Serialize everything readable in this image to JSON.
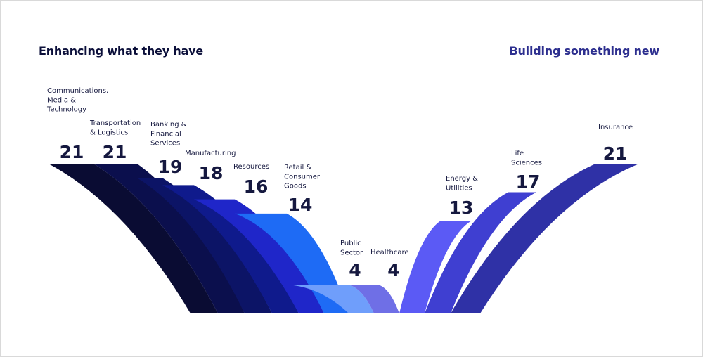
{
  "header": {
    "left_title": "Enhancing what they have",
    "right_title": "Building something new"
  },
  "chart_data": {
    "type": "bar",
    "categories": [
      "Communications, Media & Technology",
      "Transportation & Logistics",
      "Banking & Financial Services",
      "Manufacturing",
      "Resources",
      "Retail & Consumer Goods",
      "Public Sector",
      "Healthcare",
      "Energy & Utilities",
      "Life Sciences",
      "Insurance"
    ],
    "label_lines": [
      [
        "Communications,",
        "Media &",
        "Technology"
      ],
      [
        "Transportation",
        "& Logistics"
      ],
      [
        "Banking &",
        "Financial",
        "Services"
      ],
      [
        "Manufacturing"
      ],
      [
        "Resources"
      ],
      [
        "Retail &",
        "Consumer",
        "Goods"
      ],
      [
        "Public",
        "Sector"
      ],
      [
        "Healthcare"
      ],
      [
        "Energy &",
        "Utilities"
      ],
      [
        "Life",
        "Sciences"
      ],
      [
        "Insurance"
      ]
    ],
    "values": [
      21,
      21,
      19,
      18,
      16,
      14,
      4,
      4,
      13,
      17,
      21
    ],
    "groups": [
      "Enhancing what they have",
      "Building something new"
    ],
    "colors": [
      "#0a0c33",
      "#0b0f4d",
      "#0c1466",
      "#0f1a8c",
      "#1f26c9",
      "#1e6bf5",
      "#6f9efb",
      "#6f6fe6",
      "#5b5af5",
      "#3f3fd1",
      "#2f31a6"
    ]
  }
}
